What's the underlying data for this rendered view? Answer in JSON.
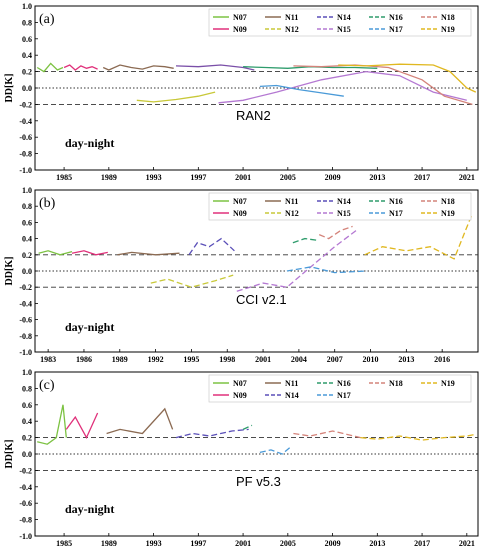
{
  "chart_data": [
    {
      "type": "line",
      "panel_label": "(a)",
      "product": "RAN2",
      "annotation": "day-night",
      "ylabel": "DD[K]",
      "ylim": [
        -1.0,
        1.0
      ],
      "yticks": [
        "-1.0",
        "-0.8",
        "-0.6",
        "-0.4",
        "-0.2",
        "0.0",
        "0.2",
        "0.4",
        "0.6",
        "0.8",
        "1.0"
      ],
      "xlim": [
        1982.4,
        2022.0
      ],
      "xticks": [
        1985,
        1989,
        1993,
        1997,
        2001,
        2005,
        2009,
        2013,
        2017,
        2021
      ],
      "xtick_labels": [
        "1985",
        "1989",
        "1993",
        "1997",
        "2001",
        "2005",
        "2009",
        "2013",
        "2017",
        "2021"
      ],
      "reference_lines": [
        0.2,
        0.0,
        -0.2
      ],
      "legend": [
        "N07",
        "N11",
        "N14",
        "N16",
        "N18",
        "N09",
        "N12",
        "N15",
        "N17",
        "N19"
      ],
      "series": [
        {
          "name": "N07",
          "color": "#7cc242",
          "dash": "",
          "x": [
            1982.6,
            1983.2,
            1983.8,
            1984.4,
            1984.9
          ],
          "y": [
            0.25,
            0.2,
            0.3,
            0.22,
            0.25
          ]
        },
        {
          "name": "N09",
          "color": "#e0307a",
          "dash": "",
          "x": [
            1985.0,
            1985.5,
            1986.0,
            1986.5,
            1987.0,
            1987.5,
            1988.0
          ],
          "y": [
            0.25,
            0.28,
            0.22,
            0.27,
            0.24,
            0.26,
            0.23
          ]
        },
        {
          "name": "N11",
          "color": "#8b6a52",
          "dash": "",
          "x": [
            1988.5,
            1989.0,
            1990.0,
            1991.0,
            1992.0,
            1993.0,
            1994.0,
            1994.8
          ],
          "y": [
            0.25,
            0.22,
            0.28,
            0.25,
            0.23,
            0.27,
            0.26,
            0.24
          ]
        },
        {
          "name": "N12",
          "color": "#c8c838",
          "dash": "",
          "x": [
            1991.5,
            1993.0,
            1995.0,
            1997.0,
            1998.5
          ],
          "y": [
            -0.15,
            -0.17,
            -0.14,
            -0.1,
            -0.05
          ]
        },
        {
          "name": "N14",
          "color": "#7a4fa8",
          "dash": "",
          "x": [
            1995.0,
            1997.0,
            1999.0,
            2001.0,
            2002.0
          ],
          "y": [
            0.27,
            0.26,
            0.28,
            0.25,
            0.22
          ]
        },
        {
          "name": "N15",
          "color": "#b478d2",
          "dash": "",
          "x": [
            1998.8,
            2001.0,
            2004.0,
            2008.0,
            2012.0,
            2015.0,
            2018.0,
            2021.0
          ],
          "y": [
            -0.18,
            -0.15,
            -0.05,
            0.1,
            0.2,
            0.15,
            -0.05,
            -0.15
          ]
        },
        {
          "name": "N16",
          "color": "#2e9c6c",
          "dash": "",
          "x": [
            2001.0,
            2003.0,
            2005.0,
            2007.0,
            2009.0,
            2011.0,
            2013.0
          ],
          "y": [
            0.26,
            0.25,
            0.24,
            0.26,
            0.25,
            0.25,
            0.24
          ]
        },
        {
          "name": "N17",
          "color": "#4a9ad8",
          "dash": "",
          "x": [
            2002.5,
            2004.0,
            2006.0,
            2008.0,
            2010.0
          ],
          "y": [
            0.02,
            0.03,
            -0.02,
            -0.06,
            -0.1
          ]
        },
        {
          "name": "N18",
          "color": "#d4837a",
          "dash": "",
          "x": [
            2005.5,
            2008.0,
            2011.0,
            2014.0,
            2017.0,
            2019.0,
            2021.5
          ],
          "y": [
            0.27,
            0.26,
            0.28,
            0.25,
            0.1,
            -0.1,
            -0.2
          ]
        },
        {
          "name": "N19",
          "color": "#e0b820",
          "dash": "",
          "x": [
            2009.5,
            2012.0,
            2015.0,
            2018.0,
            2019.5,
            2021.0,
            2021.8
          ],
          "y": [
            0.28,
            0.27,
            0.29,
            0.28,
            0.2,
            0.0,
            -0.05
          ]
        }
      ]
    },
    {
      "type": "line",
      "panel_label": "(b)",
      "product": "CCI v2.1",
      "annotation": "day-night",
      "ylabel": "DD[K]",
      "ylim": [
        -1.0,
        1.0
      ],
      "yticks": [
        "-1.0",
        "-0.8",
        "-0.6",
        "-0.4",
        "-0.2",
        "0.0",
        "0.2",
        "0.4",
        "0.6",
        "0.8",
        "1.0"
      ],
      "xlim": [
        1981.9,
        2019.0
      ],
      "xticks": [
        1983,
        1986,
        1989,
        1992,
        1995,
        1998,
        2001,
        2004,
        2007,
        2010,
        2013,
        2016
      ],
      "xtick_labels": [
        "1983",
        "1986",
        "1989",
        "1992",
        "1995",
        "1998",
        "2001",
        "2004",
        "2007",
        "2010",
        "2013",
        "2016"
      ],
      "reference_lines": [
        0.2,
        0.0,
        -0.2
      ],
      "legend": [
        "N07",
        "N11",
        "N14",
        "N16",
        "N18",
        "N09",
        "N12",
        "N15",
        "N17",
        "N19"
      ],
      "series": [
        {
          "name": "N07",
          "color": "#7cc242",
          "dash": "",
          "x": [
            1982.2,
            1983.0,
            1984.0,
            1985.0
          ],
          "y": [
            0.22,
            0.25,
            0.2,
            0.24
          ]
        },
        {
          "name": "N09",
          "color": "#e0307a",
          "dash": "",
          "x": [
            1985.0,
            1986.0,
            1987.0,
            1988.0
          ],
          "y": [
            0.22,
            0.25,
            0.2,
            0.23
          ]
        },
        {
          "name": "N11",
          "color": "#8b6a52",
          "dash": "",
          "x": [
            1988.8,
            1990.0,
            1992.0,
            1994.0
          ],
          "y": [
            0.2,
            0.23,
            0.2,
            0.22
          ]
        },
        {
          "name": "N12",
          "color": "#c8c838",
          "dash": "6,3",
          "x": [
            1991.6,
            1993.0,
            1995.0,
            1997.0,
            1998.5
          ],
          "y": [
            -0.15,
            -0.1,
            -0.2,
            -0.12,
            -0.05
          ]
        },
        {
          "name": "N14",
          "color": "#5a4fb8",
          "dash": "6,3",
          "x": [
            1994.8,
            1995.5,
            1996.5,
            1997.5,
            1998.6
          ],
          "y": [
            0.2,
            0.35,
            0.3,
            0.4,
            0.25
          ]
        },
        {
          "name": "N15",
          "color": "#b478d2",
          "dash": "6,3",
          "x": [
            1998.8,
            2001.0,
            2003.0,
            2005.0,
            2007.0,
            2008.8
          ],
          "y": [
            -0.25,
            -0.15,
            -0.2,
            0.05,
            0.3,
            0.5
          ]
        },
        {
          "name": "N16",
          "color": "#2e9c6c",
          "dash": "6,3",
          "x": [
            2003.5,
            2004.5,
            2005.5
          ],
          "y": [
            0.35,
            0.4,
            0.38
          ]
        },
        {
          "name": "N17",
          "color": "#4a9ad8",
          "dash": "6,3",
          "x": [
            2003.0,
            2005.0,
            2007.0,
            2009.7
          ],
          "y": [
            0.0,
            0.05,
            -0.02,
            0.0
          ]
        },
        {
          "name": "N18",
          "color": "#d4837a",
          "dash": "6,3",
          "x": [
            2005.7,
            2006.5,
            2007.5,
            2008.5
          ],
          "y": [
            0.45,
            0.4,
            0.5,
            0.55
          ]
        },
        {
          "name": "N19",
          "color": "#e0b820",
          "dash": "6,3",
          "x": [
            2009.5,
            2011.0,
            2013.0,
            2015.0,
            2017.0,
            2018.5
          ],
          "y": [
            0.2,
            0.3,
            0.25,
            0.3,
            0.15,
            0.7
          ]
        }
      ]
    },
    {
      "type": "line",
      "panel_label": "(c)",
      "product": "PF v5.3",
      "annotation": "day-night",
      "ylabel": "DD[K]",
      "ylim": [
        -1.0,
        1.0
      ],
      "yticks": [
        "-1.0",
        "-0.8",
        "-0.6",
        "-0.4",
        "-0.2",
        "0.0",
        "0.2",
        "0.4",
        "0.6",
        "0.8",
        "1.0"
      ],
      "xlim": [
        1982.4,
        2022.0
      ],
      "xticks": [
        1985,
        1989,
        1993,
        1997,
        2001,
        2005,
        2009,
        2013,
        2017,
        2021
      ],
      "xtick_labels": [
        "1985",
        "1989",
        "1993",
        "1997",
        "2001",
        "2005",
        "2009",
        "2013",
        "2017",
        "2021"
      ],
      "reference_lines": [
        0.2,
        0.0,
        -0.2
      ],
      "legend": [
        "N07",
        "N11",
        "N16",
        "N18",
        "N19",
        "N09",
        "N14",
        "N17"
      ],
      "series": [
        {
          "name": "N07",
          "color": "#7cc242",
          "dash": "",
          "x": [
            1982.6,
            1983.5,
            1984.3,
            1984.9,
            1985.2
          ],
          "y": [
            0.15,
            0.12,
            0.2,
            0.6,
            0.2
          ]
        },
        {
          "name": "N09",
          "color": "#e0307a",
          "dash": "",
          "x": [
            1985.2,
            1986.0,
            1987.0,
            1988.0
          ],
          "y": [
            0.3,
            0.45,
            0.2,
            0.5
          ]
        },
        {
          "name": "N11",
          "color": "#8b6a52",
          "dash": "",
          "x": [
            1988.8,
            1990.0,
            1992.0,
            1994.0,
            1994.7
          ],
          "y": [
            0.25,
            0.3,
            0.25,
            0.55,
            0.3
          ]
        },
        {
          "name": "N14",
          "color": "#5a4fb8",
          "dash": "6,3",
          "x": [
            1995.0,
            1996.5,
            1998.0,
            2000.0,
            2001.5
          ],
          "y": [
            0.2,
            0.25,
            0.22,
            0.28,
            0.3
          ]
        },
        {
          "name": "N16",
          "color": "#2e9c6c",
          "dash": "6,3",
          "x": [
            2001.0,
            2001.8
          ],
          "y": [
            0.3,
            0.35
          ]
        },
        {
          "name": "N17",
          "color": "#4a9ad8",
          "dash": "6,3",
          "x": [
            2002.5,
            2003.5,
            2004.5,
            2005.2
          ],
          "y": [
            0.02,
            0.05,
            0.0,
            0.08
          ]
        },
        {
          "name": "N18",
          "color": "#d4837a",
          "dash": "6,3",
          "x": [
            2005.5,
            2007.0,
            2009.0,
            2011.5
          ],
          "y": [
            0.25,
            0.22,
            0.28,
            0.2
          ]
        },
        {
          "name": "N19",
          "color": "#e0b820",
          "dash": "6,3",
          "x": [
            2011.5,
            2013.0,
            2015.0,
            2017.0,
            2019.0,
            2021.0,
            2021.8
          ],
          "y": [
            0.2,
            0.18,
            0.22,
            0.17,
            0.2,
            0.22,
            0.24
          ]
        }
      ]
    }
  ]
}
